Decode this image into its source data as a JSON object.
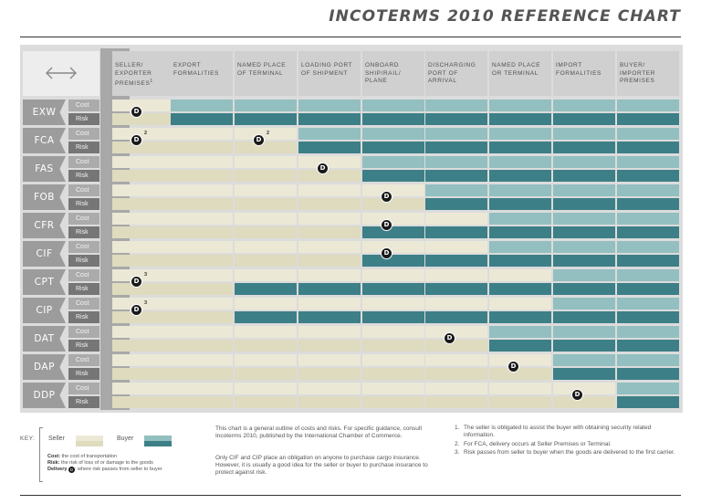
{
  "title": "INCOTERMS 2010 REFERENCE CHART",
  "colors": {
    "seller_cost": "#ebe8d6",
    "seller_risk": "#dedbbf",
    "buyer_cost": "#93bfc0",
    "buyer_risk": "#3d7f87",
    "delivery_marker": "#1a1a1a"
  },
  "header_icon": "double-arrow-icon",
  "columns": [
    {
      "label": "Seller/ Exporter Premises",
      "sup": "1"
    },
    {
      "label": "Export Formalities"
    },
    {
      "label": "Named Place of Terminal"
    },
    {
      "label": "Loading Port of Shipment"
    },
    {
      "label": "Onboard Ship/Rail/ Plane"
    },
    {
      "label": "Discharging Port of Arrival"
    },
    {
      "label": "Named Place or Terminal"
    },
    {
      "label": "Import Formalities"
    },
    {
      "label": "Buyer/ Importer Premises"
    }
  ],
  "sub_labels": {
    "cost": "Cost",
    "risk": "Risk"
  },
  "terms": [
    {
      "name": "EXW",
      "cost_seller_cols": 1,
      "risk_seller_cols": 1,
      "delivery_col": 1,
      "delivery_sup": ""
    },
    {
      "name": "FCA",
      "cost_seller_cols": 3,
      "risk_seller_cols": 3,
      "delivery_col": 1,
      "delivery_sup": "2",
      "extra_delivery_col": 3,
      "extra_delivery_sup": "2"
    },
    {
      "name": "FAS",
      "cost_seller_cols": 4,
      "risk_seller_cols": 4,
      "delivery_col": 4,
      "delivery_sup": ""
    },
    {
      "name": "FOB",
      "cost_seller_cols": 5,
      "risk_seller_cols": 5,
      "delivery_col": 5,
      "delivery_sup": ""
    },
    {
      "name": "CFR",
      "cost_seller_cols": 6,
      "risk_seller_cols": 4,
      "delivery_col": 5,
      "delivery_sup": ""
    },
    {
      "name": "CIF",
      "cost_seller_cols": 6,
      "risk_seller_cols": 4,
      "delivery_col": 5,
      "delivery_sup": ""
    },
    {
      "name": "CPT",
      "cost_seller_cols": 7,
      "risk_seller_cols": 2,
      "delivery_col": 1,
      "delivery_sup": "3"
    },
    {
      "name": "CIP",
      "cost_seller_cols": 7,
      "risk_seller_cols": 2,
      "delivery_col": 1,
      "delivery_sup": "3"
    },
    {
      "name": "DAT",
      "cost_seller_cols": 6,
      "risk_seller_cols": 6,
      "delivery_col": 6,
      "delivery_sup": ""
    },
    {
      "name": "DAP",
      "cost_seller_cols": 7,
      "risk_seller_cols": 7,
      "delivery_col": 7,
      "delivery_sup": ""
    },
    {
      "name": "DDP",
      "cost_seller_cols": 8,
      "risk_seller_cols": 8,
      "delivery_col": 8,
      "delivery_sup": ""
    }
  ],
  "delivery_letter": "D",
  "key": {
    "label": "KEY:",
    "seller": "Seller",
    "buyer": "Buyer",
    "cost_term": "Cost:",
    "cost_desc": "the cost of transportation",
    "risk_term": "Risk:",
    "risk_desc": "the risk of loss of or damage to the goods",
    "delivery_term": "Delivery",
    "delivery_desc": ": where risk passes from seller to buyer"
  },
  "note_1": "This chart is a general outline of costs and risks. For specific guidance, consult Incoterms 2010, published by the International Chamber of Commerce.",
  "note_2": "Only CIF and CIP place an obligation on anyone to purchase cargo insurance. However, it is usually a good idea for the seller or buyer to purchase insurance to protect against risk.",
  "footnotes": [
    {
      "num": "1.",
      "text": "The seller is obligated to assist the buyer with obtaining security related information."
    },
    {
      "num": "2.",
      "text": "For FCA, delivery occurs at Seller Premises or Terminal."
    },
    {
      "num": "3.",
      "text": "Risk passes from seller to buyer when the goods are delivered to the first carrier."
    }
  ]
}
